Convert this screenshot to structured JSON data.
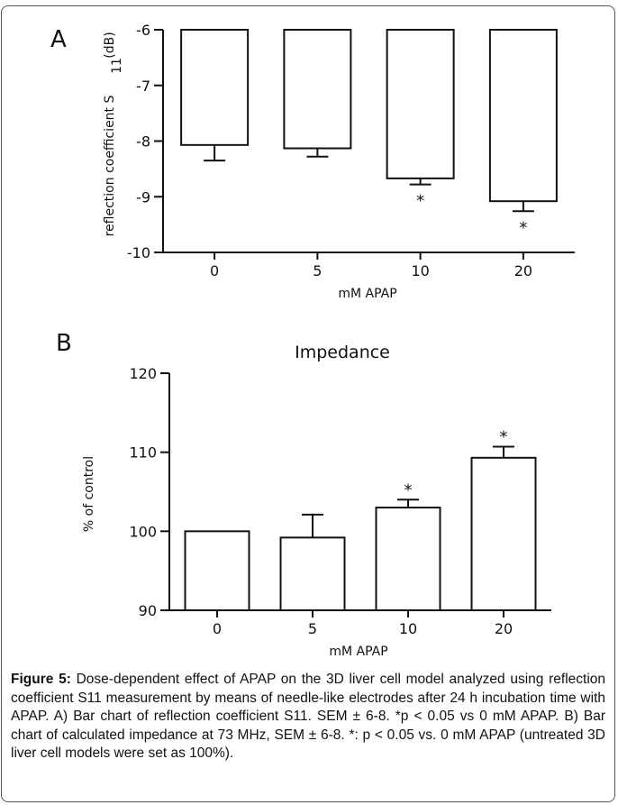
{
  "chart_data": [
    {
      "type": "bar",
      "panel": "A",
      "categories": [
        "0",
        "5",
        "10",
        "20"
      ],
      "values": [
        -8.07,
        -8.13,
        -8.67,
        -9.08
      ],
      "errors": [
        0.28,
        0.15,
        0.11,
        0.18
      ],
      "significance": [
        "",
        "",
        "*",
        "*"
      ],
      "xlabel": "mM APAP",
      "ylabel": "reflection coefficient S",
      "ylabel_sub": "11",
      "ylabel_unit": "(dB)",
      "ylim": [
        -10,
        -6
      ],
      "yticks": [
        -6,
        -7,
        -8,
        -9,
        -10
      ],
      "bars_hang_from_top": true,
      "grid": false
    },
    {
      "type": "bar",
      "panel": "B",
      "title": "Impedance",
      "categories": [
        "0",
        "5",
        "10",
        "20"
      ],
      "values": [
        100,
        99.2,
        103,
        109.3
      ],
      "errors": [
        0,
        2.9,
        1.0,
        1.4
      ],
      "significance": [
        "",
        "",
        "*",
        "*"
      ],
      "xlabel": "mM APAP",
      "ylabel": "% of control",
      "ylim": [
        90,
        120
      ],
      "yticks": [
        90,
        100,
        110,
        120
      ],
      "grid": false
    }
  ],
  "caption": {
    "label": "Figure 5:",
    "text": " Dose-dependent effect of APAP on the 3D liver cell model analyzed using reflection coefficient S11 measurement by means of needle-like electrodes after 24 h incubation time with APAP.  A) Bar chart of reflection coefficient S11. SEM ± 6-8. *p < 0.05 vs 0 mM APAP. B) Bar chart of calculated impedance at 73 MHz, SEM ± 6-8. *: p < 0.05 vs. 0 mM APAP (untreated 3D liver cell models were set as 100%)."
  }
}
